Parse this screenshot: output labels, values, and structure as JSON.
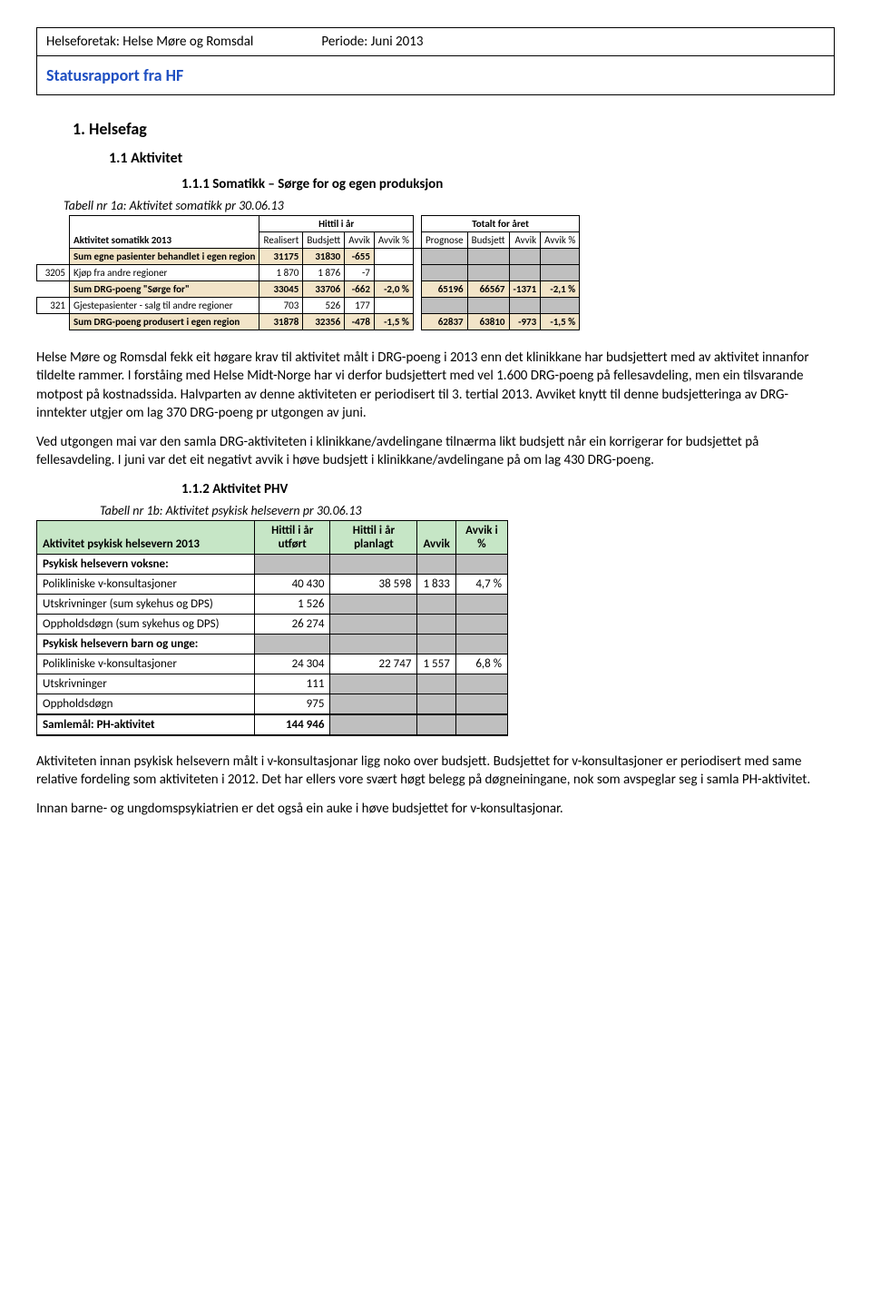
{
  "header": {
    "company_label": "Helseforetak: Helse Møre og Romsdal",
    "period_label": "Periode: Juni 2013",
    "title": "Statusrapport fra HF"
  },
  "sections": {
    "s1": "1.    Helsefag",
    "s11": "1.1   Aktivitet",
    "s111": "1.1.1   Somatikk – Sørge for og egen produksjon",
    "s112": "1.1.2   Aktivitet PHV"
  },
  "table1a": {
    "caption": "Tabell nr 1a: Aktivitet somatikk pr 30.06.13",
    "title_cell": "Aktivitet somatikk 2013",
    "group1": "Hittil i år",
    "group2": "Totalt for året",
    "cols": [
      "Realisert",
      "Budsjett",
      "Avvik",
      "Avvik %",
      "Prognose",
      "Budsjett",
      "Avvik",
      "Avvik %"
    ],
    "rows": [
      {
        "code": "",
        "label": "Sum egne pasienter behandlet i egen region",
        "vals": [
          "31175",
          "31830",
          "-655",
          "",
          "",
          "",
          "",
          ""
        ],
        "style": "beige_label",
        "grey_right": true,
        "bold": true
      },
      {
        "code": "3205",
        "label": "Kjøp fra andre regioner",
        "vals": [
          "1 870",
          "1 876",
          "-7",
          "",
          "",
          "",
          "",
          ""
        ],
        "style": "plain",
        "grey_right": true
      },
      {
        "code": "",
        "label": "Sum DRG-poeng \"Sørge for\"",
        "vals": [
          "33045",
          "33706",
          "-662",
          "-2,0 %",
          "65196",
          "66567",
          "-1371",
          "-2,1 %"
        ],
        "style": "beige_all",
        "bold": true
      },
      {
        "code": "321",
        "label": "Gjestepasienter - salg til andre regioner",
        "vals": [
          "703",
          "526",
          "177",
          "",
          "",
          "",
          "",
          ""
        ],
        "style": "plain",
        "grey_right": true
      },
      {
        "code": "",
        "label": "Sum DRG-poeng produsert i egen region",
        "vals": [
          "31878",
          "32356",
          "-478",
          "-1,5 %",
          "62837",
          "63810",
          "-973",
          "-1,5 %"
        ],
        "style": "beige_all",
        "bold": true
      }
    ]
  },
  "para1": "Helse Møre og Romsdal fekk eit høgare krav til aktivitet målt i DRG-poeng i 2013 enn det klinikkane har budsjettert med av aktivitet innanfor tildelte rammer. I forståing med Helse Midt-Norge har vi derfor budsjettert med vel 1.600 DRG-poeng på fellesavdeling, men ein tilsvarande motpost på kostnadssida.  Halvparten av denne aktiviteten er periodisert til 3. tertial 2013.  Avviket knytt til denne budsjetteringa av DRG-inntekter utgjer om lag 370 DRG-poeng pr utgongen av juni.",
  "para2": "Ved utgongen mai var den samla DRG-aktiviteten i klinikkane/avdelingane tilnærma likt budsjett når ein korrigerar for budsjettet på fellesavdeling.  I juni var det eit negativt avvik i høve budsjett i klinikkane/avdelingane på om lag 430 DRG-poeng.",
  "table1b": {
    "caption": "Tabell nr 1b: Aktivitet psykisk helsevern pr 30.06.13",
    "header_row": [
      "Aktivitet psykisk helsevern 2013",
      "Hittil i år utført",
      "Hittil i år planlagt",
      "Avvik",
      "Avvik i %"
    ],
    "rows": [
      {
        "label": "Psykisk helsevern voksne:",
        "vals": [
          "",
          "",
          "",
          ""
        ],
        "section": true,
        "grey": true
      },
      {
        "label": "Polikliniske v-konsultasjoner",
        "vals": [
          "40 430",
          "38 598",
          "1 833",
          "4,7 %"
        ]
      },
      {
        "label": "Utskrivninger (sum sykehus og DPS)",
        "vals": [
          "1 526",
          "",
          "",
          ""
        ],
        "grey_tail": true
      },
      {
        "label": "Oppholdsdøgn (sum sykehus og DPS)",
        "vals": [
          "26 274",
          "",
          "",
          ""
        ],
        "grey_tail": true
      },
      {
        "label": "Psykisk helsevern barn og unge:",
        "vals": [
          "",
          "",
          "",
          ""
        ],
        "section": true,
        "grey": true
      },
      {
        "label": "Polikliniske v-konsultasjoner",
        "vals": [
          "24 304",
          "22 747",
          "1 557",
          "6,8 %"
        ]
      },
      {
        "label": "Utskrivninger",
        "vals": [
          "111",
          "",
          "",
          ""
        ],
        "grey_tail": true
      },
      {
        "label": "Oppholdsdøgn",
        "vals": [
          "975",
          "",
          "",
          ""
        ],
        "grey_tail": true
      },
      {
        "label": "Samlemål: PH-aktivitet",
        "vals": [
          "144 946",
          "",
          "",
          ""
        ],
        "samle": true,
        "grey_tail": true
      }
    ]
  },
  "para3": "Aktiviteten innan psykisk helsevern målt i v-konsultasjonar ligg noko over budsjett. Budsjettet for v-konsultasjoner er periodisert med same relative fordeling som aktiviteten i 2012.  Det har ellers vore svært høgt belegg på døgneiningane, nok som avspeglar seg i samla PH-aktivitet.",
  "para4": "Innan barne- og ungdomspsykiatrien er det også ein auke i høve budsjettet for v-konsultasjonar."
}
